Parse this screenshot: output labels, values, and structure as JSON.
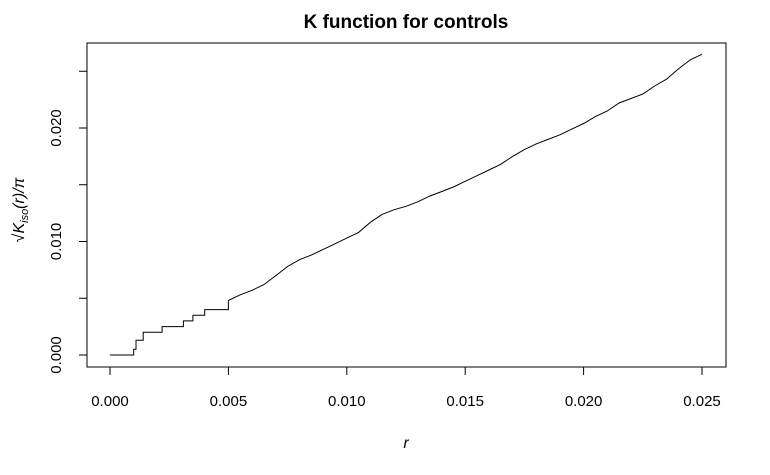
{
  "chart_data": {
    "type": "line",
    "title": "K function for controls",
    "xlabel": "r",
    "ylabel": "√K_iso(r)/π",
    "ylabel_parts": {
      "radical": "√",
      "main": "K",
      "sub": "iso",
      "rest": "(r)/π"
    },
    "xlim": [
      0.0,
      0.025
    ],
    "ylim": [
      0.0,
      0.026
    ],
    "x_ticks": [
      "0.000",
      "0.005",
      "0.010",
      "0.015",
      "0.020",
      "0.025"
    ],
    "y_ticks": [
      "0.000",
      "0.010",
      "0.020"
    ],
    "grid": false,
    "legend": "none",
    "line_color": "#000000",
    "series": [
      {
        "x": [
          0.0,
          0.001,
          0.001,
          0.0011,
          0.0011,
          0.0014,
          0.0014,
          0.0022,
          0.0022,
          0.0031,
          0.0031,
          0.0035,
          0.0035,
          0.004,
          0.004,
          0.005,
          0.005,
          0.0055,
          0.006,
          0.0065,
          0.007,
          0.0075,
          0.008,
          0.0085,
          0.009,
          0.0095,
          0.01,
          0.0105,
          0.011,
          0.0115,
          0.012,
          0.0125,
          0.013,
          0.0135,
          0.014,
          0.0145,
          0.015,
          0.0155,
          0.016,
          0.0165,
          0.017,
          0.0175,
          0.018,
          0.0185,
          0.019,
          0.0195,
          0.02,
          0.0205,
          0.021,
          0.0215,
          0.022,
          0.0225,
          0.023,
          0.0235,
          0.024,
          0.0245,
          0.025
        ],
        "y": [
          0.0,
          0.0,
          0.0005,
          0.0005,
          0.0013,
          0.0013,
          0.002,
          0.002,
          0.0025,
          0.0025,
          0.003,
          0.003,
          0.0035,
          0.0035,
          0.004,
          0.004,
          0.0048,
          0.0053,
          0.0057,
          0.0062,
          0.007,
          0.0078,
          0.0084,
          0.0088,
          0.0093,
          0.0098,
          0.0103,
          0.0108,
          0.0117,
          0.0124,
          0.0128,
          0.0131,
          0.0135,
          0.014,
          0.0144,
          0.0148,
          0.0153,
          0.0158,
          0.0163,
          0.0168,
          0.0175,
          0.0181,
          0.0186,
          0.019,
          0.0194,
          0.0199,
          0.0204,
          0.021,
          0.0215,
          0.0222,
          0.0226,
          0.023,
          0.0237,
          0.0243,
          0.0252,
          0.026,
          0.0265
        ]
      }
    ]
  }
}
